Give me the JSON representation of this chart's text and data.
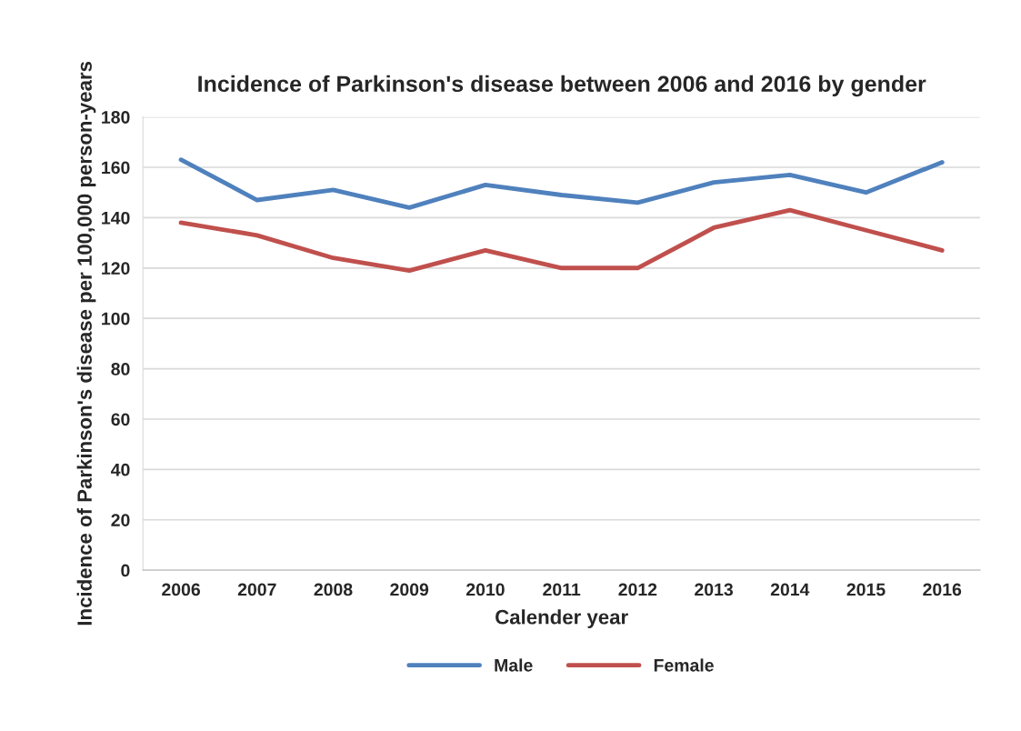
{
  "chart_data": {
    "type": "line",
    "title": "Incidence of Parkinson's disease between 2006 and 2016 by gender",
    "xlabel": "Calender year",
    "ylabel": "Incidence of Parkinson's disease per 100,000 person-years",
    "categories": [
      "2006",
      "2007",
      "2008",
      "2009",
      "2010",
      "2011",
      "2012",
      "2013",
      "2014",
      "2015",
      "2016"
    ],
    "series": [
      {
        "name": "Male",
        "color": "#4f81bd",
        "values": [
          163,
          147,
          151,
          144,
          153,
          149,
          146,
          154,
          157,
          150,
          162
        ]
      },
      {
        "name": "Female",
        "color": "#c0504d",
        "values": [
          138,
          133,
          124,
          119,
          127,
          120,
          120,
          136,
          143,
          135,
          127
        ]
      }
    ],
    "ylim": [
      0,
      180
    ],
    "yticks": [
      0,
      20,
      40,
      60,
      80,
      100,
      120,
      140,
      160,
      180
    ],
    "grid": "y",
    "legend": "bottom",
    "marker": "none",
    "line_style": "solid"
  }
}
